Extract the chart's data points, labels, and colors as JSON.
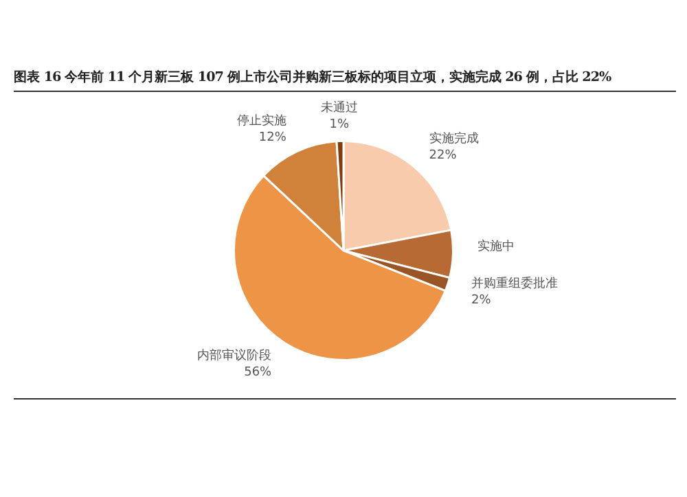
{
  "chart_data": {
    "type": "pie",
    "title": "图表 16  今年前 11 个月新三板 107 例上市公司并购新三板标的项目立项，实施完成 26 例，占比 22%",
    "categories": [
      "实施完成",
      "实施中",
      "并购重组委批准",
      "内部审议阶段",
      "停止实施",
      "未通过"
    ],
    "values": [
      22,
      7,
      2,
      56,
      12,
      1
    ],
    "colors": [
      "#f8cbad",
      "#b86a35",
      "#9a5526",
      "#ed9447",
      "#d0813a",
      "#843c0c"
    ],
    "value_labels": [
      "22%",
      null,
      "2%",
      "56%",
      "12%",
      "1%"
    ],
    "legend": false
  }
}
